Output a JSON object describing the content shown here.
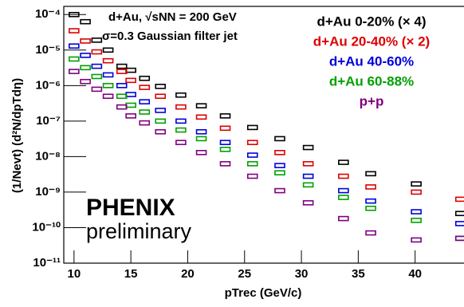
{
  "chart_data": {
    "type": "scatter",
    "x_label": "pTrec (GeV/c)",
    "y_label": "(1/Nevt) (d²N/dpTdη)",
    "annotations": [
      "d+Au, √sNN = 200 GeV",
      "σ=0.3 Gaussian filter jet",
      "PHENIX",
      "preliminary"
    ],
    "log_y": true,
    "xlim": [
      9.1,
      44.3
    ],
    "ylim": [
      1e-11,
      0.00017
    ],
    "xticks": [
      10,
      15,
      20,
      25,
      30,
      35,
      40
    ],
    "yticks": [
      {
        "value": 1e-11,
        "label": "10⁻¹¹"
      },
      {
        "value": 1e-10,
        "label": "10⁻¹⁰"
      },
      {
        "value": 1e-09,
        "label": "10⁻⁹"
      },
      {
        "value": 1e-08,
        "label": "10⁻⁸"
      },
      {
        "value": 1e-07,
        "label": "10⁻⁷"
      },
      {
        "value": 1e-06,
        "label": "10⁻⁶"
      },
      {
        "value": 1e-05,
        "label": "10⁻⁵"
      },
      {
        "value": 0.0001,
        "label": "10⁻⁴"
      }
    ],
    "x": [
      10,
      11,
      12,
      13,
      14.2,
      15,
      16.2,
      17.6,
      19.4,
      21.2,
      23.3,
      25.7,
      28.1,
      30.6,
      33.7,
      36.1,
      40.1,
      44
    ],
    "series": [
      {
        "name": "d+Au 0-20% (× 4)",
        "color": "#000000",
        "values": [
          0.0001,
          6.3e-05,
          1.9e-05,
          1e-05,
          3.5e-06,
          2.7e-06,
          1.6e-06,
          9.5e-07,
          5.4e-07,
          2.7e-07,
          1.4e-07,
          6.6e-08,
          3.2e-08,
          1.8e-08,
          6.9e-09,
          3.3e-09,
          1.7e-09,
          2.5e-10
        ]
      },
      {
        "name": "d+Au 20-40% (× 2)",
        "color": "#dd0000",
        "values": [
          3.5e-05,
          1.8e-05,
          8.9e-06,
          5e-06,
          2.5e-06,
          1.4e-06,
          8.9e-07,
          5e-07,
          2.5e-07,
          1.3e-07,
          6.3e-08,
          2.5e-08,
          1.3e-08,
          6.3e-09,
          2.8e-09,
          1.4e-09,
          1e-09,
          6.3e-10
        ]
      },
      {
        "name": "d+Au 40-60%",
        "color": "#0000dd",
        "values": [
          1.3e-05,
          7.1e-06,
          3.5e-06,
          2e-06,
          1e-06,
          5.6e-07,
          3.5e-07,
          2e-07,
          1e-07,
          5e-08,
          2.5e-08,
          1.1e-08,
          5.6e-09,
          2.8e-09,
          1.1e-09,
          5.6e-10,
          2.8e-10,
          1.3e-10
        ]
      },
      {
        "name": "d+Au 60-88%",
        "color": "#00a000",
        "values": [
          5.6e-06,
          3.2e-06,
          1.8e-06,
          1e-06,
          5e-07,
          2.8e-07,
          1.8e-07,
          1e-07,
          5.6e-08,
          3.2e-08,
          1.6e-08,
          6.3e-09,
          3.5e-09,
          1.6e-09,
          7.1e-10,
          3.5e-10,
          1.6e-10,
          5e-11
        ]
      },
      {
        "name": "p+p",
        "color": "#800080",
        "values": [
          2.5e-06,
          1.3e-06,
          7.9e-07,
          5e-07,
          2.5e-07,
          1.4e-07,
          8.9e-08,
          5e-08,
          2.5e-08,
          1.3e-08,
          6.3e-09,
          2.8e-09,
          1.1e-09,
          5e-10,
          1.8e-10,
          7.1e-11,
          4.5e-11,
          5e-11
        ]
      }
    ]
  }
}
